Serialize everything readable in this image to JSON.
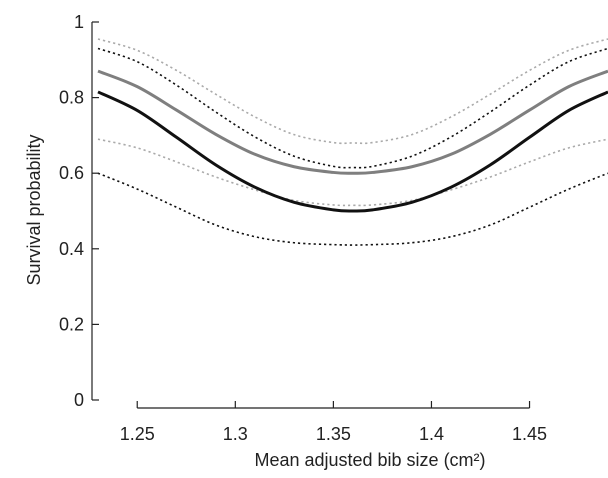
{
  "chart_data": {
    "type": "line",
    "title": "",
    "xlabel": "Mean adjusted bib size (cm²)",
    "ylabel": "Survival probability",
    "xlim": [
      1.23,
      1.49
    ],
    "ylim": [
      0,
      1
    ],
    "xticks": [
      1.25,
      1.3,
      1.35,
      1.4,
      1.45
    ],
    "xtick_labels": [
      "1.25",
      "1.3",
      "1.35",
      "1.4",
      "1.45"
    ],
    "yticks": [
      0,
      0.2,
      0.4,
      0.6,
      0.8,
      1
    ],
    "ytick_labels": [
      "0",
      "0.2",
      "0.4",
      "0.6",
      "0.8",
      "1"
    ],
    "grid": false,
    "legend": "none",
    "x": [
      1.23,
      1.25,
      1.27,
      1.29,
      1.31,
      1.33,
      1.35,
      1.36,
      1.37,
      1.39,
      1.41,
      1.43,
      1.45,
      1.47,
      1.49
    ],
    "series": [
      {
        "color": "#7f7f7f",
        "style": "solid",
        "width": 3,
        "values": [
          0.87,
          0.829,
          0.767,
          0.703,
          0.65,
          0.617,
          0.602,
          0.6,
          0.602,
          0.617,
          0.65,
          0.703,
          0.767,
          0.829,
          0.87
        ]
      },
      {
        "color": "#aaaaaa",
        "style": "dotted",
        "width": 1.6,
        "values": [
          0.955,
          0.925,
          0.872,
          0.809,
          0.749,
          0.702,
          0.681,
          0.68,
          0.681,
          0.702,
          0.749,
          0.809,
          0.872,
          0.925,
          0.955
        ]
      },
      {
        "color": "#aaaaaa",
        "style": "dotted",
        "width": 1.6,
        "values": [
          0.69,
          0.667,
          0.63,
          0.59,
          0.556,
          0.528,
          0.516,
          0.515,
          0.516,
          0.528,
          0.556,
          0.59,
          0.63,
          0.667,
          0.69
        ]
      },
      {
        "color": "#111111",
        "style": "solid",
        "width": 3,
        "values": [
          0.815,
          0.766,
          0.695,
          0.622,
          0.563,
          0.523,
          0.503,
          0.5,
          0.503,
          0.523,
          0.563,
          0.622,
          0.695,
          0.766,
          0.815
        ]
      },
      {
        "color": "#111111",
        "style": "dotted",
        "width": 1.6,
        "values": [
          0.93,
          0.895,
          0.833,
          0.762,
          0.696,
          0.645,
          0.618,
          0.615,
          0.618,
          0.645,
          0.696,
          0.762,
          0.833,
          0.895,
          0.93
        ]
      },
      {
        "color": "#111111",
        "style": "dotted",
        "width": 1.6,
        "values": [
          0.6,
          0.558,
          0.51,
          0.463,
          0.432,
          0.416,
          0.411,
          0.41,
          0.411,
          0.416,
          0.432,
          0.463,
          0.51,
          0.558,
          0.6
        ]
      }
    ]
  }
}
